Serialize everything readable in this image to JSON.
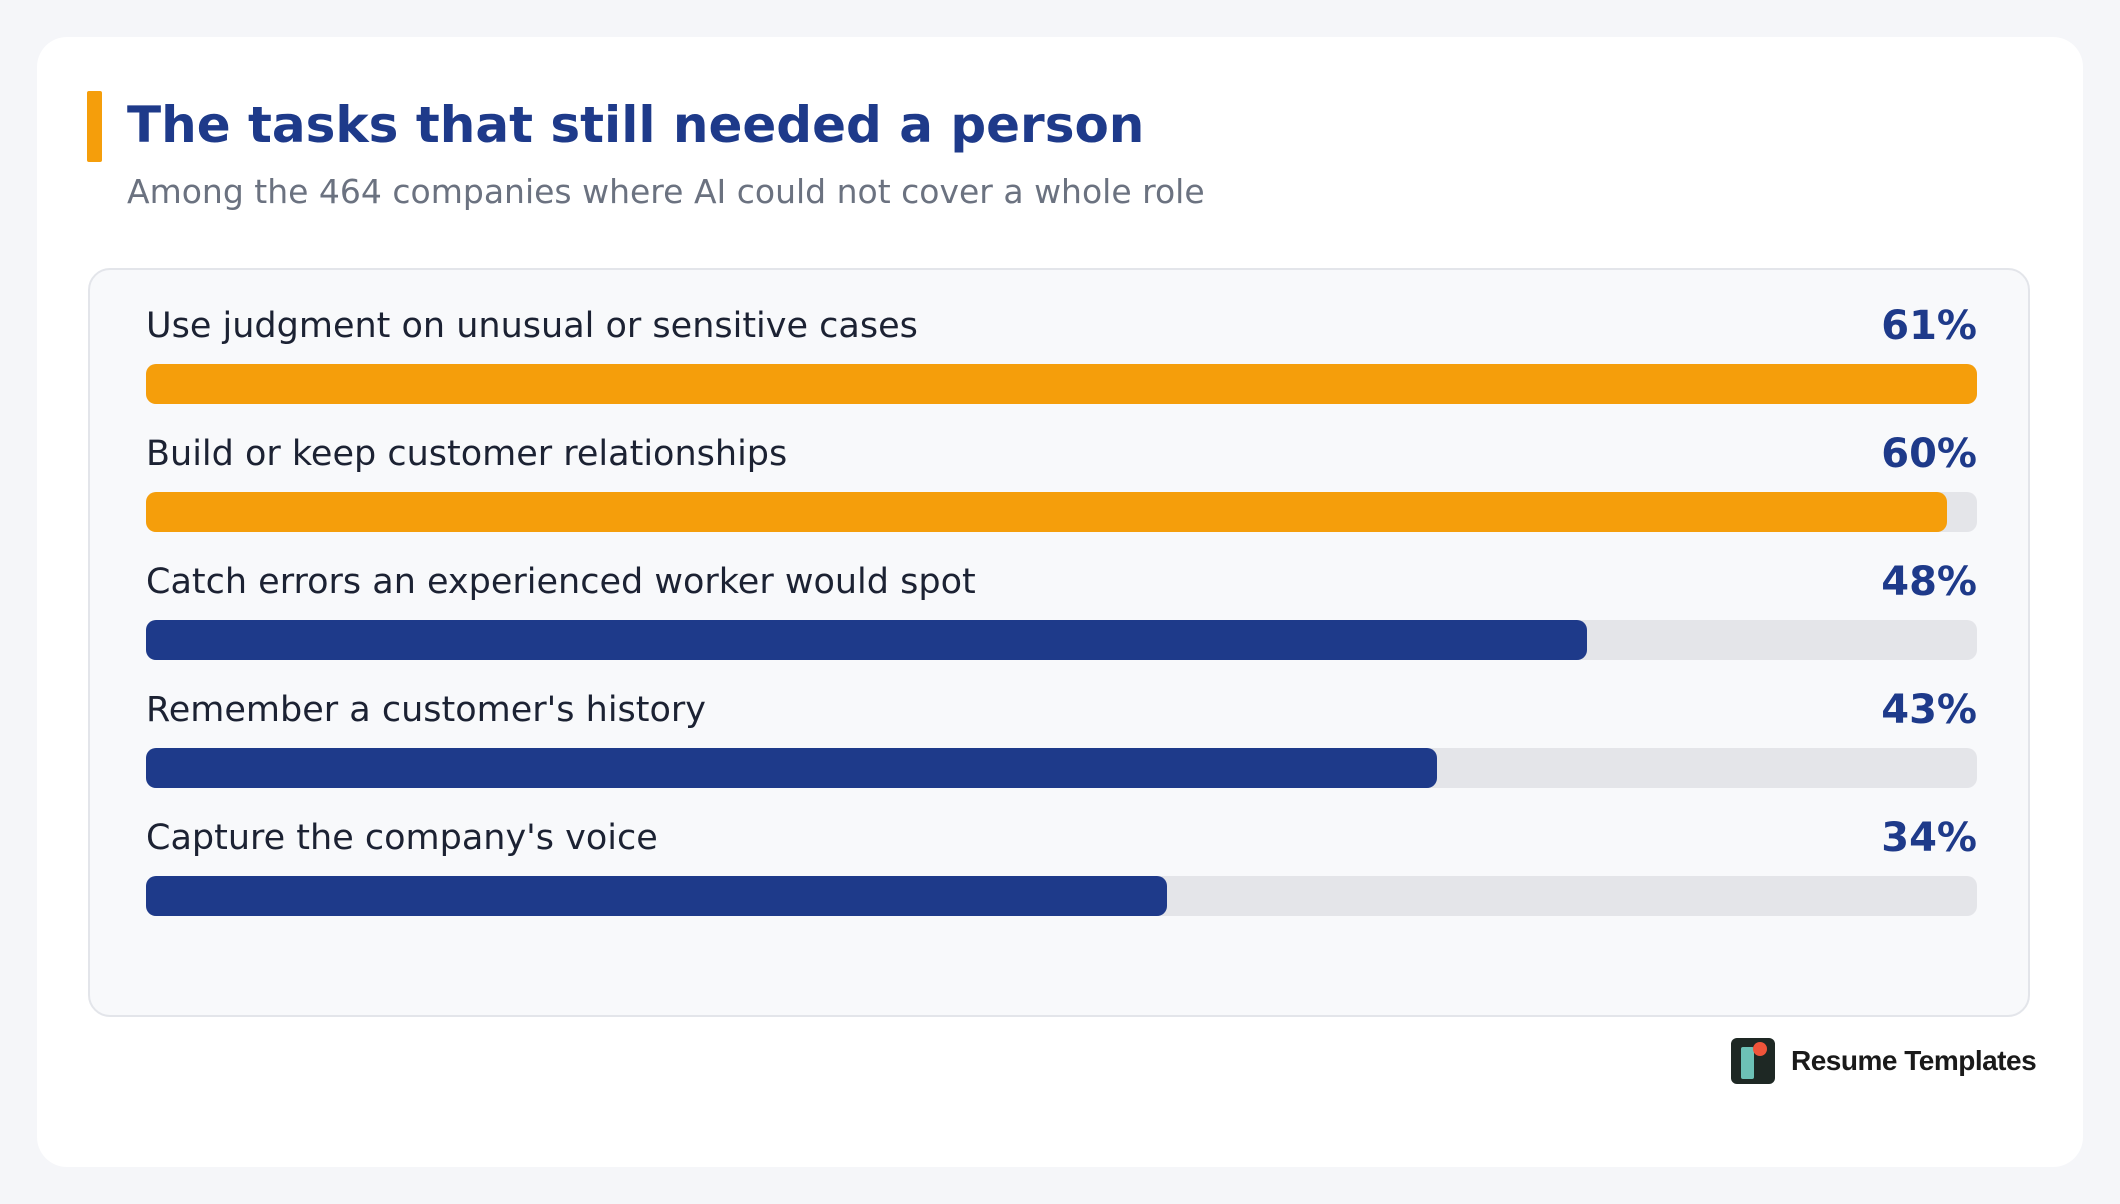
{
  "header": {
    "title": "The tasks that still needed a person",
    "subtitle": "Among the 464 companies where AI could not cover a whole role"
  },
  "colors": {
    "accent": "#f59e0b",
    "primary": "#1e3a8a",
    "track": "#e4e5e9",
    "subtitle": "#6b7280"
  },
  "chart_data": {
    "type": "bar",
    "orientation": "horizontal",
    "title": "The tasks that still needed a person",
    "subtitle": "Among the 464 companies where AI could not cover a whole role",
    "categories": [
      "Use judgment on unusual or sensitive cases",
      "Build or keep customer relationships",
      "Catch errors an experienced worker would spot",
      "Remember a customer's history",
      "Capture the company's voice"
    ],
    "values": [
      61,
      60,
      48,
      43,
      34
    ],
    "value_labels": [
      "61%",
      "60%",
      "48%",
      "43%",
      "34%"
    ],
    "highlighted": [
      true,
      true,
      false,
      false,
      false
    ],
    "xlim": [
      0,
      61
    ],
    "unit": "%",
    "grid": false
  },
  "brand": {
    "name": "Resume Templates",
    "logo_icon": "resume-templates-logo-icon"
  }
}
